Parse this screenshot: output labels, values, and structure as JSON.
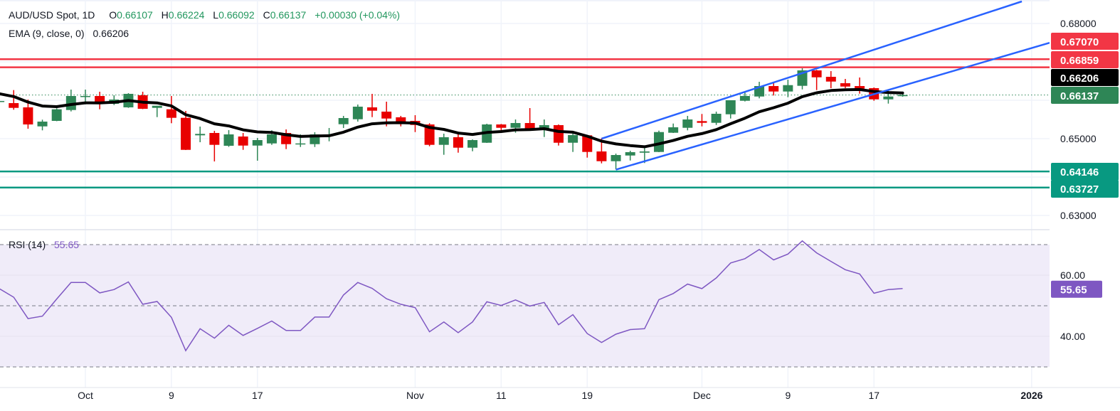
{
  "header": {
    "symbol": "AUD/USD Spot, 1D",
    "open_label": "O",
    "open": "0.66107",
    "high_label": "H",
    "high": "0.66224",
    "low_label": "L",
    "low": "0.66092",
    "close_label": "C",
    "close": "0.66137",
    "change": "+0.00030 (+0.04%)",
    "ema_label": "EMA (9, close, 0)",
    "ema_value": "0.66206",
    "rsi_label": "RSI (14)",
    "rsi_value": "55.65"
  },
  "colors": {
    "up": "#2e8656",
    "down": "#e80000",
    "ema": "#000000",
    "channel": "#2962ff",
    "resistance": "#f23645",
    "support": "#089981",
    "rsi": "#7e57c2",
    "rsi_band": "#f0ecf9",
    "grid": "#f0f3fa",
    "last_price": "#2e8656"
  },
  "chart_data": [
    {
      "type": "candlestick",
      "title": "AUD/USD Spot, 1D",
      "y_axis": {
        "range": [
          0.626,
          0.686
        ],
        "ticks": [
          "0.68000",
          "0.65000",
          "0.63000"
        ]
      },
      "x_axis": {
        "ticks": [
          {
            "label": "Oct",
            "date": "2025-10-01"
          },
          {
            "label": "9",
            "date": "2025-10-09"
          },
          {
            "label": "17",
            "date": "2025-10-17"
          },
          {
            "label": "Nov",
            "date": "2025-11-03"
          },
          {
            "label": "11",
            "date": "2025-11-11"
          },
          {
            "label": "19",
            "date": "2025-11-19"
          },
          {
            "label": "Dec",
            "date": "2025-12-01"
          },
          {
            "label": "9",
            "date": "2025-12-09"
          },
          {
            "label": "17",
            "date": "2025-12-17"
          },
          {
            "label": "2026",
            "date": "2026-01-01"
          }
        ]
      },
      "columns": [
        "date",
        "open",
        "high",
        "low",
        "close"
      ],
      "candles": [
        [
          "2025-09-23",
          0.65972,
          0.6599,
          0.65965,
          0.65981
        ],
        [
          "2025-09-24",
          0.65926,
          0.66265,
          0.65754,
          0.65802
        ],
        [
          "2025-09-25",
          0.65815,
          0.66019,
          0.65259,
          0.6537
        ],
        [
          "2025-09-26",
          0.6532,
          0.65494,
          0.65217,
          0.65444
        ],
        [
          "2025-09-29",
          0.65463,
          0.65791,
          0.65455,
          0.65765
        ],
        [
          "2025-09-30",
          0.65746,
          0.66278,
          0.65709,
          0.66111
        ],
        [
          "2025-10-01",
          0.66102,
          0.66278,
          0.65894,
          0.66111
        ],
        [
          "2025-10-02",
          0.66111,
          0.66222,
          0.65765,
          0.65926
        ],
        [
          "2025-10-03",
          0.65907,
          0.6613,
          0.65876,
          0.66019
        ],
        [
          "2025-10-06",
          0.65815,
          0.66185,
          0.65802,
          0.66167
        ],
        [
          "2025-10-07",
          0.6613,
          0.66222,
          0.65769,
          0.65778
        ],
        [
          "2025-10-08",
          0.65802,
          0.65857,
          0.65561,
          0.65857
        ],
        [
          "2025-10-09",
          0.65765,
          0.66111,
          0.65402,
          0.65543
        ],
        [
          "2025-10-10",
          0.65543,
          0.65722,
          0.64704,
          0.64709
        ],
        [
          "2025-10-13",
          0.65087,
          0.65315,
          0.64907,
          0.65124
        ],
        [
          "2025-10-14",
          0.65148,
          0.65204,
          0.64407,
          0.64839
        ],
        [
          "2025-10-15",
          0.64815,
          0.65222,
          0.64787,
          0.65111
        ],
        [
          "2025-10-16",
          0.65056,
          0.65148,
          0.64709,
          0.6482
        ],
        [
          "2025-10-17",
          0.6482,
          0.65019,
          0.64426,
          0.64963
        ],
        [
          "2025-10-20",
          0.64876,
          0.65217,
          0.64839,
          0.65111
        ],
        [
          "2025-10-21",
          0.65148,
          0.65241,
          0.64728,
          0.64857
        ],
        [
          "2025-10-22",
          0.64865,
          0.65111,
          0.64783,
          0.64876
        ],
        [
          "2025-10-23",
          0.64857,
          0.65167,
          0.64783,
          0.65111
        ],
        [
          "2025-10-24",
          0.65074,
          0.65278,
          0.64931,
          0.65106
        ],
        [
          "2025-10-27",
          0.65376,
          0.65593,
          0.65278,
          0.65537
        ],
        [
          "2025-10-28",
          0.65506,
          0.65889,
          0.65444,
          0.65833
        ],
        [
          "2025-10-29",
          0.65815,
          0.66167,
          0.65561,
          0.65728
        ],
        [
          "2025-10-30",
          0.65704,
          0.65963,
          0.6532,
          0.65524
        ],
        [
          "2025-10-31",
          0.65556,
          0.65593,
          0.6532,
          0.65431
        ],
        [
          "2025-11-03",
          0.65463,
          0.65611,
          0.65172,
          0.65357
        ],
        [
          "2025-11-04",
          0.6537,
          0.65402,
          0.64802,
          0.64839
        ],
        [
          "2025-11-05",
          0.64839,
          0.6513,
          0.6458,
          0.65037
        ],
        [
          "2025-11-06",
          0.65037,
          0.65185,
          0.64635,
          0.64765
        ],
        [
          "2025-11-07",
          0.64765,
          0.64981,
          0.64672,
          0.64963
        ],
        [
          "2025-11-10",
          0.64894,
          0.65389,
          0.64889,
          0.6537
        ],
        [
          "2025-11-11",
          0.6537,
          0.65383,
          0.65154,
          0.65283
        ],
        [
          "2025-11-12",
          0.65283,
          0.655,
          0.65154,
          0.65407
        ],
        [
          "2025-11-13",
          0.65407,
          0.65796,
          0.65217,
          0.65265
        ],
        [
          "2025-11-14",
          0.65265,
          0.655,
          0.65043,
          0.65352
        ],
        [
          "2025-11-17",
          0.65352,
          0.6537,
          0.6482,
          0.64894
        ],
        [
          "2025-11-18",
          0.64894,
          0.65167,
          0.64654,
          0.65093
        ],
        [
          "2025-11-19",
          0.65087,
          0.65093,
          0.64506,
          0.64654
        ],
        [
          "2025-11-20",
          0.64667,
          0.65013,
          0.64357,
          0.64413
        ],
        [
          "2025-11-21",
          0.64413,
          0.64611,
          0.64198,
          0.64574
        ],
        [
          "2025-11-24",
          0.64561,
          0.64685,
          0.64431,
          0.64648
        ],
        [
          "2025-11-25",
          0.64635,
          0.64759,
          0.64365,
          0.64667
        ],
        [
          "2025-11-26",
          0.64654,
          0.65209,
          0.64648,
          0.65172
        ],
        [
          "2025-11-27",
          0.65154,
          0.65394,
          0.65148,
          0.65296
        ],
        [
          "2025-11-28",
          0.65283,
          0.65593,
          0.65217,
          0.655
        ],
        [
          "2025-12-01",
          0.65457,
          0.65643,
          0.6532,
          0.65413
        ],
        [
          "2025-12-02",
          0.65413,
          0.65704,
          0.65357,
          0.65648
        ],
        [
          "2025-12-03",
          0.65635,
          0.66,
          0.65524,
          0.66
        ],
        [
          "2025-12-04",
          0.65987,
          0.66222,
          0.65969,
          0.66111
        ],
        [
          "2025-12-05",
          0.66098,
          0.66481,
          0.6605,
          0.6637
        ],
        [
          "2025-12-08",
          0.6637,
          0.66481,
          0.66124,
          0.66228
        ],
        [
          "2025-12-09",
          0.66228,
          0.66537,
          0.6608,
          0.66394
        ],
        [
          "2025-12-10",
          0.66376,
          0.66833,
          0.66283,
          0.66778
        ],
        [
          "2025-12-11",
          0.66778,
          0.66791,
          0.66265,
          0.66598
        ],
        [
          "2025-12-12",
          0.66611,
          0.66759,
          0.66315,
          0.66487
        ],
        [
          "2025-12-15",
          0.66444,
          0.66556,
          0.66315,
          0.66357
        ],
        [
          "2025-12-16",
          0.6637,
          0.66593,
          0.66172,
          0.66302
        ],
        [
          "2025-12-17",
          0.66315,
          0.66333,
          0.65987,
          0.66024
        ],
        [
          "2025-12-18",
          0.66024,
          0.66265,
          0.65913,
          0.66098
        ],
        [
          "2025-12-19",
          0.66107,
          0.66224,
          0.66092,
          0.66137
        ]
      ],
      "ema": {
        "period": 9,
        "last": 0.66206,
        "seed": 0.6617
      },
      "horizontal_levels": [
        {
          "price": 0.6707,
          "label": "0.67070",
          "kind": "resistance"
        },
        {
          "price": 0.66859,
          "label": "0.66859",
          "kind": "resistance"
        },
        {
          "price": 0.64146,
          "label": "0.64146",
          "kind": "support"
        },
        {
          "price": 0.63727,
          "label": "0.63727",
          "kind": "support"
        }
      ],
      "price_badges": [
        {
          "label": "0.67070",
          "kind": "resistance"
        },
        {
          "label": "0.66859",
          "kind": "resistance"
        },
        {
          "label": "0.66206",
          "kind": "ema"
        },
        {
          "label": "0.66137",
          "kind": "last"
        }
      ],
      "support_badges": [
        {
          "label": "0.64146"
        },
        {
          "label": "0.63727"
        }
      ],
      "last_price": 0.66137,
      "channel": {
        "upper": [
          {
            "date": "2025-11-20",
            "price": 0.65
          },
          {
            "date": "2025-12-10",
            "price": 0.66707
          }
        ],
        "lower": [
          {
            "date": "2025-11-21",
            "price": 0.64194
          },
          {
            "date": "2025-12-17",
            "price": 0.66159
          }
        ]
      }
    },
    {
      "type": "line",
      "title": "RSI (14)",
      "y_axis": {
        "range": [
          22,
          77
        ],
        "ticks": [
          "60.00",
          "40.00"
        ],
        "bands": [
          70,
          50,
          30
        ]
      },
      "values": [
        55.6,
        52.8,
        45.8,
        46.6,
        52.2,
        57.6,
        57.6,
        54.2,
        55.3,
        57.8,
        50.5,
        51.4,
        46.2,
        35.3,
        42.5,
        39.4,
        43.6,
        40.3,
        42.6,
        45.0,
        41.9,
        41.9,
        46.3,
        46.3,
        53.5,
        57.6,
        55.7,
        52.3,
        50.5,
        49.4,
        41.5,
        44.7,
        41.2,
        44.7,
        51.3,
        50.1,
        51.9,
        49.9,
        51.1,
        43.8,
        47.1,
        40.9,
        38.0,
        40.7,
        42.2,
        42.5,
        52.0,
        54.0,
        57.1,
        55.6,
        59.1,
        64.0,
        65.4,
        68.4,
        65.0,
        66.9,
        71.2,
        67.3,
        64.5,
        61.8,
        60.4,
        54.1,
        55.3,
        55.65
      ],
      "last_label": "55.65"
    }
  ]
}
